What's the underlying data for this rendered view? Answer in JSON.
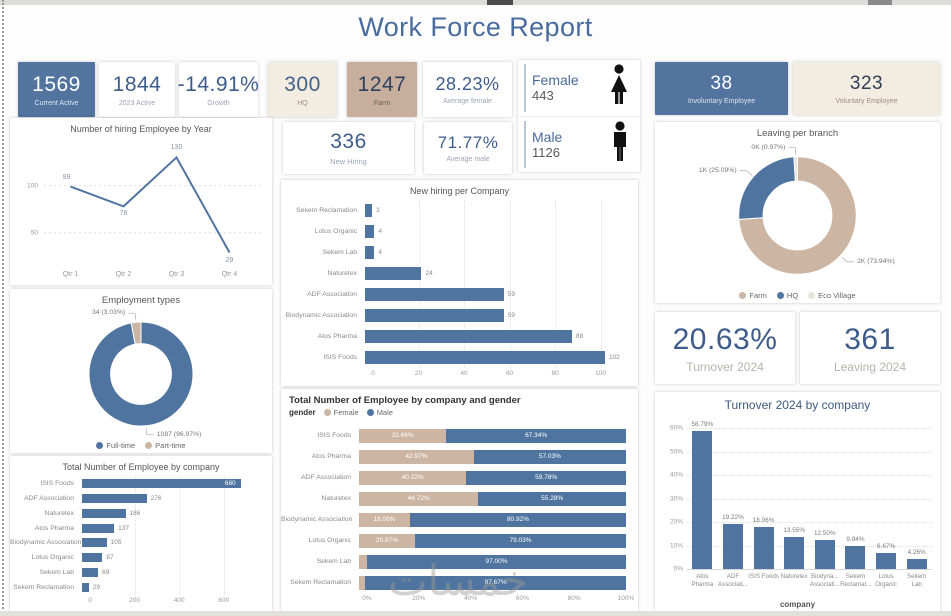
{
  "title": "Work Force Report",
  "watermark": "خمسات",
  "colors": {
    "blue": "#4f74a0",
    "tan": "#cdb5a3",
    "eco": "#e9e4db",
    "cream": "#f2ece1",
    "number_blue": "#3d5c8c",
    "line": "#4f74a0"
  },
  "kpis": {
    "current_active": {
      "value": "1569",
      "label": "Current Active"
    },
    "active_2023": {
      "value": "1844",
      "label": "2023 Active"
    },
    "growth": {
      "value": "-14.91%",
      "label": "Growth"
    },
    "hq": {
      "value": "300",
      "label": "HQ"
    },
    "farm": {
      "value": "1247",
      "label": "Farm"
    },
    "average_female": {
      "value": "28.23%",
      "label": "Average female"
    },
    "new_hiring": {
      "value": "336",
      "label": "New Hiring"
    },
    "average_male": {
      "value": "71.77%",
      "label": "Average male"
    },
    "involuntary": {
      "value": "38",
      "label": "Involuntary Employee"
    },
    "voluntary": {
      "value": "323",
      "label": "Voluntary Employee"
    },
    "turnover_2024": {
      "value": "20.63%",
      "label": "Turnover 2024"
    },
    "leaving_2024": {
      "value": "361",
      "label": "Leaving 2024"
    }
  },
  "gender_card": {
    "female_label": "Female",
    "female_value": "443",
    "male_label": "Male",
    "male_value": "1126"
  },
  "chart_data": [
    {
      "id": "hiring_by_year",
      "type": "line",
      "title": "Number of hiring Employee by Year",
      "categories": [
        "Qtr 1",
        "Qtr 2",
        "Qtr 3",
        "Qtr 4"
      ],
      "values": [
        99,
        78,
        130,
        29
      ],
      "labels": [
        "99",
        "78",
        "130",
        "29"
      ],
      "yticks": [
        50,
        100
      ],
      "ylim": [
        20,
        140
      ],
      "grid": true
    },
    {
      "id": "new_hiring_per_company",
      "type": "barh",
      "title": "New hiring per Company",
      "categories": [
        "Sekem Reclamation",
        "Lotus Organic",
        "Sekem Lab",
        "Naturetex",
        "ADF Association",
        "Biodynamic Association",
        "Atos Pharma",
        "ISIS Foods"
      ],
      "values": [
        3,
        4,
        4,
        24,
        59,
        59,
        88,
        102
      ],
      "labels": [
        "3",
        "4",
        "4",
        "24",
        "59",
        "59",
        "88",
        "102"
      ],
      "xticks": [
        0,
        20,
        40,
        60,
        80,
        100
      ],
      "xlim": [
        0,
        105
      ],
      "grid": true
    },
    {
      "id": "employment_types",
      "type": "donut",
      "title": "Employment types",
      "slices": [
        {
          "name": "Full-time",
          "value": 96.97,
          "label": "1087 (96.97%)",
          "color": "blue"
        },
        {
          "name": "Part-time",
          "value": 3.03,
          "label": "34 (3.03%)",
          "color": "tan"
        }
      ],
      "legend": [
        {
          "label": "Full-time",
          "color": "blue"
        },
        {
          "label": "Part-time",
          "color": "tan"
        }
      ]
    },
    {
      "id": "leaving_per_branch",
      "type": "donut",
      "title": "Leaving per branch",
      "slices": [
        {
          "name": "Farm",
          "value": 73.94,
          "label": "2K (73.94%)",
          "color": "tan"
        },
        {
          "name": "HQ",
          "value": 25.09,
          "label": "1K (25.09%)",
          "color": "blue"
        },
        {
          "name": "Eco Village",
          "value": 0.97,
          "label": "0K (0.97%)",
          "color": "eco"
        }
      ],
      "legend": [
        {
          "label": "Farm",
          "color": "tan"
        },
        {
          "label": "HQ",
          "color": "blue"
        },
        {
          "label": "Eco Village",
          "color": "eco"
        }
      ]
    },
    {
      "id": "employees_by_company",
      "type": "barh",
      "title": "Total Number of Employee by company",
      "categories": [
        "ISIS Foods",
        "ADF Association",
        "Naturetex",
        "Atos Pharma",
        "Biodynamic Association",
        "Lotus Organic",
        "Sekem Lab",
        "Sekem Reclamation"
      ],
      "values": [
        680,
        276,
        186,
        137,
        105,
        87,
        69,
        29
      ],
      "labels": [
        "680",
        "276",
        "186",
        "137",
        "105",
        "87",
        "69",
        "29"
      ],
      "xticks": [
        0,
        200,
        400,
        600
      ],
      "xlim": [
        0,
        700
      ],
      "max_label_inside": true,
      "grid": true
    },
    {
      "id": "employees_by_company_gender",
      "type": "stacked100",
      "title": "Total Number of Employee by company and gender",
      "legend_title": "gender",
      "series": [
        {
          "name": "Female",
          "color": "tan"
        },
        {
          "name": "Male",
          "color": "blue"
        }
      ],
      "categories": [
        "ISIS Foods",
        "Atos Pharma",
        "ADF Association",
        "Naturetex",
        "Biodynamic Association",
        "Lotus Organic",
        "Sekem Lab",
        "Sekem Reclamation"
      ],
      "female_values": [
        32.66,
        42.97,
        40.22,
        44.72,
        19.08,
        20.97,
        3.0,
        2.33
      ],
      "male_values": [
        67.34,
        57.03,
        59.78,
        55.28,
        80.92,
        79.03,
        97.0,
        97.67
      ],
      "female_labels": [
        "32.66%",
        "42.97%",
        "40.22%",
        "44.72%",
        "19.08%",
        "20.97%",
        "",
        ""
      ],
      "male_labels": [
        "67.34%",
        "57.03%",
        "59.78%",
        "55.28%",
        "80.92%",
        "79.03%",
        "97.00%",
        "97.67%"
      ],
      "xticks": [
        "0%",
        "20%",
        "40%",
        "60%",
        "80%",
        "100%"
      ]
    },
    {
      "id": "turnover_by_company",
      "type": "column",
      "title": "Turnover 2024 by company",
      "xlabel": "company",
      "categories": [
        "Atos\nPharma",
        "ADF\nAssociati...",
        "ISIS Foods",
        "Naturetex",
        "Biodyna...\nAssociati...",
        "Sekem\nReclamat...",
        "Lotus\nOrganic",
        "Sekem Lab"
      ],
      "values": [
        58.79,
        19.22,
        18.06,
        13.55,
        12.5,
        9.84,
        6.67,
        4.26
      ],
      "labels": [
        "58.79%",
        "19.22%",
        "18.06%",
        "13.55%",
        "12.50%",
        "9.84%",
        "6.67%",
        "4.26%"
      ],
      "yticks": [
        "0%",
        "10%",
        "20%",
        "30%",
        "40%",
        "50%",
        "60%"
      ],
      "ylim": [
        0,
        60
      ],
      "grid": true
    }
  ]
}
